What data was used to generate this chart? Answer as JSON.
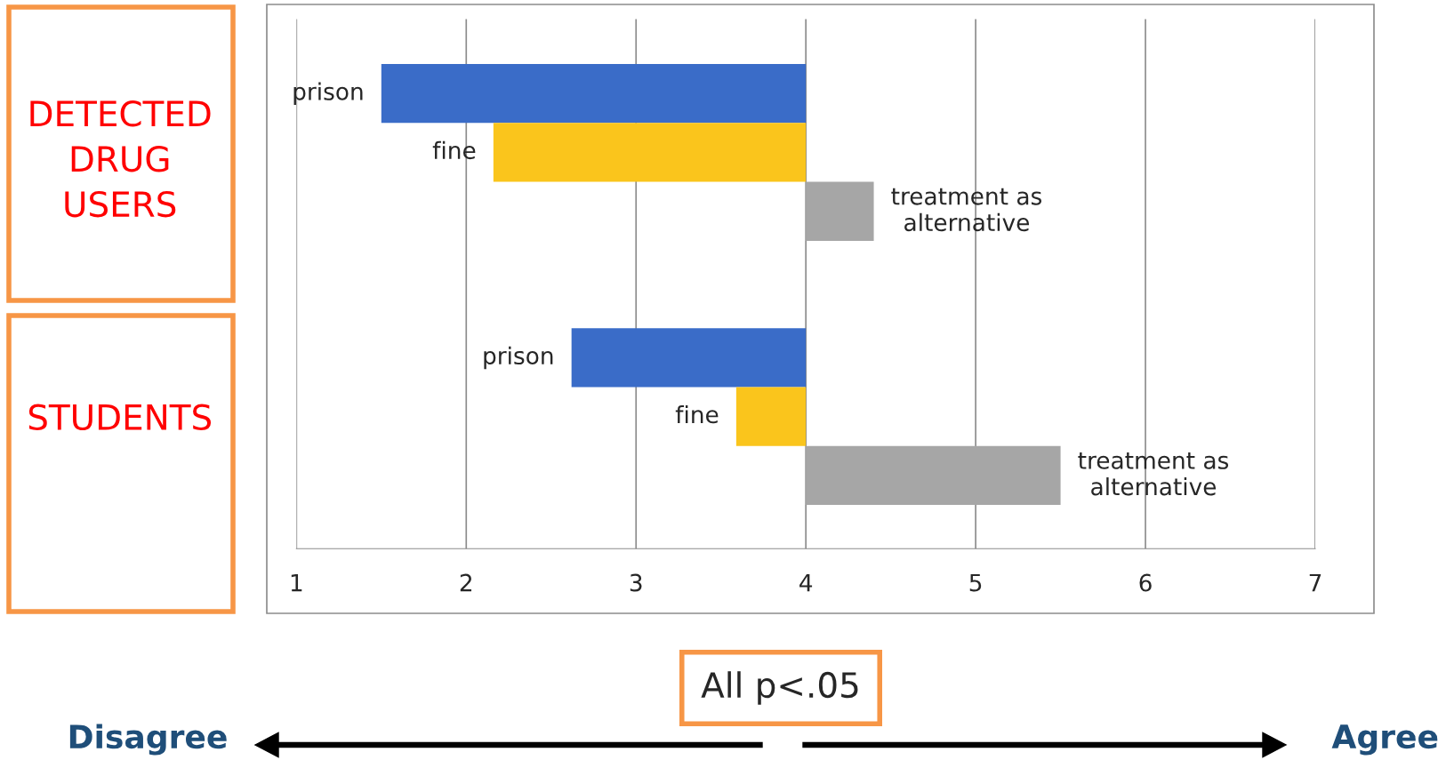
{
  "chart_data": {
    "type": "bar",
    "orientation": "horizontal",
    "categories": [
      "DETECTED\nDRUG\nUSERS",
      "STUDENTS"
    ],
    "series": [
      {
        "name": "prison",
        "color": "#3a6cc8",
        "values": [
          -2.5,
          -1.38
        ],
        "base": [
          4,
          4
        ]
      },
      {
        "name": "fine",
        "color": "#fac51c",
        "values": [
          -1.84,
          -0.41
        ],
        "base": [
          4,
          4
        ]
      },
      {
        "name": "treatment as\nalternative",
        "color": "#a6a6a6",
        "values": [
          0.4,
          1.5
        ],
        "base": [
          4,
          4
        ]
      }
    ],
    "xlim": [
      1,
      7
    ],
    "xticks": [
      1,
      2,
      3,
      4,
      5,
      6,
      7
    ],
    "grid": "x",
    "legend": false,
    "annotations": [
      "All p<.05",
      "Disagree",
      "Agree"
    ]
  }
}
